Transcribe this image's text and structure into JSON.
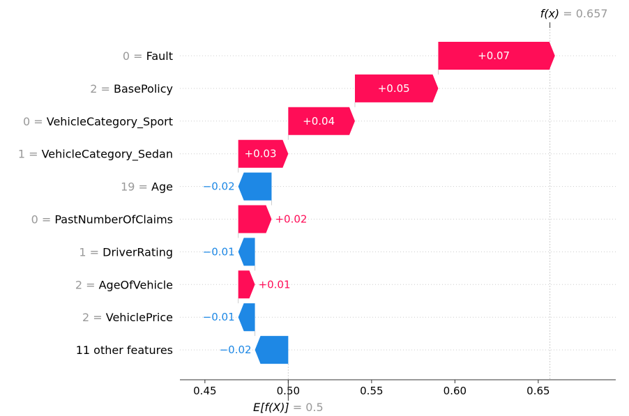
{
  "chart_data": {
    "type": "waterfall",
    "base_label": "E[f(X)]",
    "base_value": 0.5,
    "base_value_text": "0.5",
    "final_label": "f(x)",
    "final_value": 0.657,
    "final_value_text": "0.657",
    "features": [
      {
        "value_text": "0",
        "name": "Fault",
        "contribution": 0.07,
        "contribution_text": "+0.07"
      },
      {
        "value_text": "2",
        "name": "BasePolicy",
        "contribution": 0.05,
        "contribution_text": "+0.05"
      },
      {
        "value_text": "0",
        "name": "VehicleCategory_Sport",
        "contribution": 0.04,
        "contribution_text": "+0.04"
      },
      {
        "value_text": "1",
        "name": "VehicleCategory_Sedan",
        "contribution": 0.03,
        "contribution_text": "+0.03"
      },
      {
        "value_text": "19",
        "name": "Age",
        "contribution": -0.02,
        "contribution_text": "−0.02"
      },
      {
        "value_text": "0",
        "name": "PastNumberOfClaims",
        "contribution": 0.02,
        "contribution_text": "+0.02"
      },
      {
        "value_text": "1",
        "name": "DriverRating",
        "contribution": -0.01,
        "contribution_text": "−0.01"
      },
      {
        "value_text": "2",
        "name": "AgeOfVehicle",
        "contribution": 0.01,
        "contribution_text": "+0.01"
      },
      {
        "value_text": "2",
        "name": "VehiclePrice",
        "contribution": -0.01,
        "contribution_text": "−0.01"
      },
      {
        "value_text": "",
        "name": "11 other features",
        "contribution": -0.02,
        "contribution_text": "−0.02"
      }
    ],
    "x_ticks": [
      0.45,
      0.5,
      0.55,
      0.6,
      0.65
    ],
    "x_tick_labels": [
      "0.45",
      "0.50",
      "0.55",
      "0.60",
      "0.65"
    ],
    "xlim": [
      0.435,
      0.6965
    ],
    "colors": {
      "positive": "#ff0d57",
      "negative": "#1e88e5",
      "text_dark": "#000000",
      "text_gray": "#999999",
      "grid": "#cccccc"
    }
  }
}
